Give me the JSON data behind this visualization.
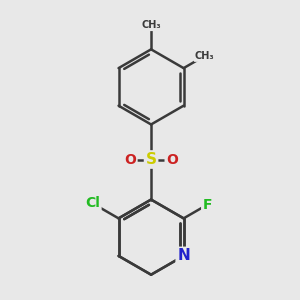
{
  "background_color": "#e8e8e8",
  "bond_color": "#3a3a3a",
  "bond_width": 1.8,
  "atom_colors": {
    "Cl": "#22bb22",
    "F": "#22bb22",
    "N": "#2222cc",
    "S": "#cccc00",
    "O": "#cc2222",
    "C": "#3a3a3a"
  },
  "figsize": [
    3.0,
    3.0
  ],
  "dpi": 100
}
